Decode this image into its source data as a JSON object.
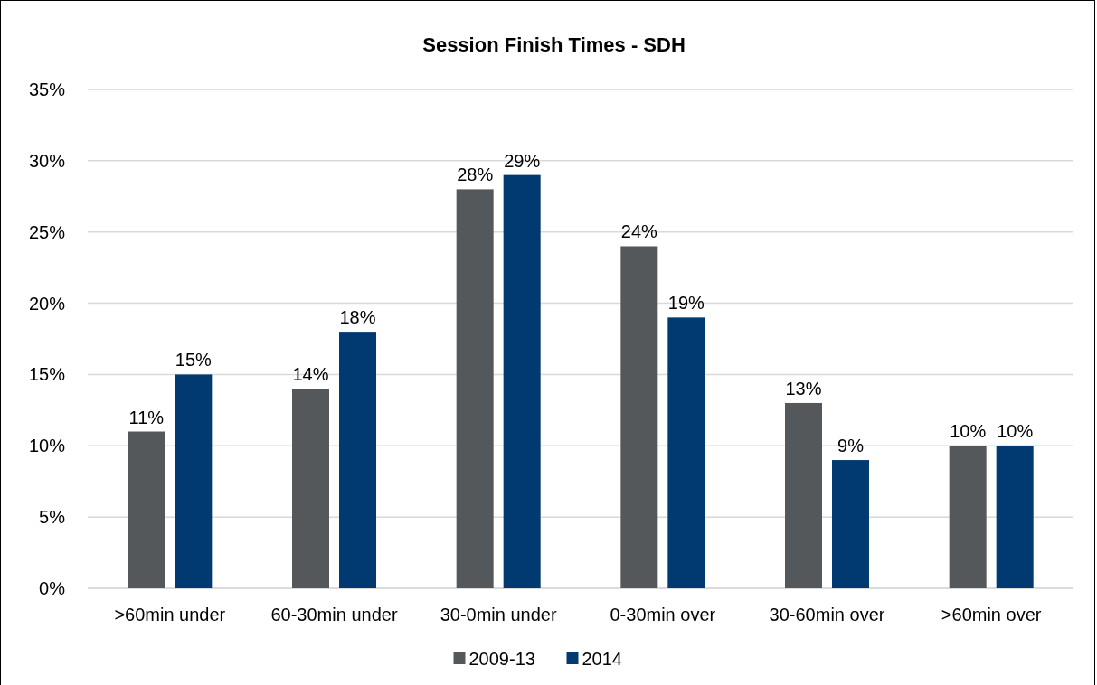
{
  "chart_data": {
    "type": "bar",
    "title": "Session Finish Times - SDH",
    "categories": [
      ">60min under",
      "60-30min under",
      "30-0min under",
      "0-30min over",
      "30-60min over",
      ">60min over"
    ],
    "series": [
      {
        "name": "2009-13",
        "color": "#55585a",
        "values": [
          11,
          14,
          28,
          24,
          13,
          10
        ],
        "value_labels": [
          "11%",
          "14%",
          "28%",
          "24%",
          "13%",
          "10%"
        ]
      },
      {
        "name": "2014",
        "color": "#003a70",
        "values": [
          15,
          18,
          29,
          19,
          9,
          10
        ],
        "value_labels": [
          "15%",
          "18%",
          "29%",
          "19%",
          "9%",
          "10%"
        ]
      }
    ],
    "ylim": [
      0,
      35
    ],
    "yticks": [
      {
        "value": 0,
        "label": "0%"
      },
      {
        "value": 5,
        "label": "5%"
      },
      {
        "value": 10,
        "label": "10%"
      },
      {
        "value": 15,
        "label": "15%"
      },
      {
        "value": 20,
        "label": "20%"
      },
      {
        "value": 25,
        "label": "25%"
      },
      {
        "value": 30,
        "label": "30%"
      },
      {
        "value": 35,
        "label": "35%"
      }
    ],
    "grid": "y",
    "legend": "bottom"
  }
}
